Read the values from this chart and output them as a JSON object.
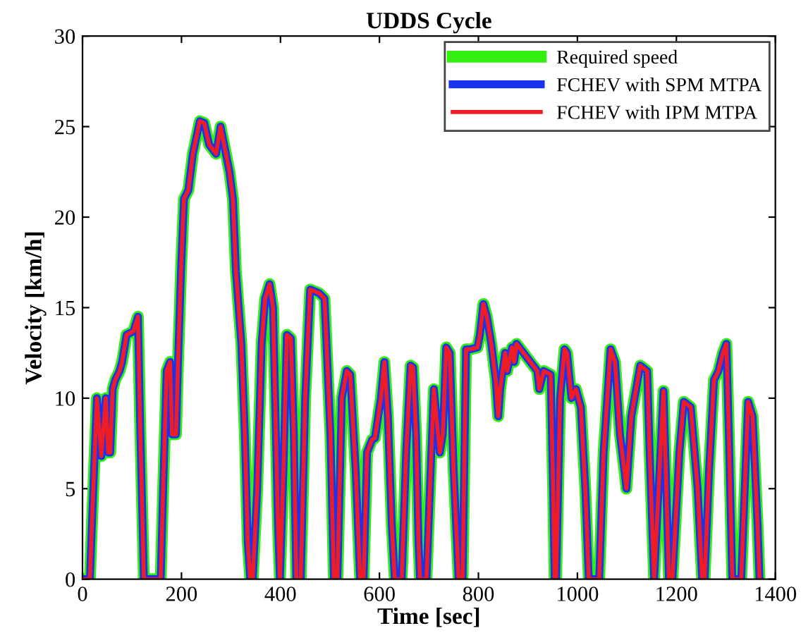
{
  "chart_data": {
    "type": "line",
    "title": "UDDS Cycle",
    "xlabel": "Time [sec]",
    "ylabel": "Velocity [km/h]",
    "x": [
      0,
      15,
      19,
      29,
      38,
      47,
      52,
      56,
      61,
      66,
      75,
      80,
      89,
      103,
      112,
      117,
      121,
      124,
      158,
      163,
      170,
      177,
      181,
      189,
      193,
      199,
      205,
      214,
      223,
      237,
      246,
      256,
      270,
      279,
      297,
      304,
      310,
      321,
      328,
      334,
      339,
      344,
      353,
      362,
      369,
      378,
      385,
      390,
      395,
      399,
      406,
      413,
      421,
      427,
      432,
      441,
      450,
      460,
      478,
      489,
      501,
      508,
      515,
      524,
      534,
      541,
      552,
      561,
      568,
      575,
      585,
      591,
      603,
      610,
      617,
      625,
      631,
      645,
      654,
      663,
      668,
      674,
      679,
      682,
      695,
      702,
      710,
      715,
      722,
      728,
      735,
      742,
      750,
      760,
      768,
      775,
      784,
      798,
      803,
      810,
      817,
      826,
      835,
      840,
      844,
      854,
      858,
      868,
      872,
      877,
      891,
      905,
      919,
      923,
      932,
      946,
      951,
      954,
      957,
      965,
      974,
      979,
      988,
      997,
      1007,
      1016,
      1023,
      1044,
      1053,
      1067,
      1076,
      1086,
      1095,
      1099,
      1109,
      1127,
      1141,
      1146,
      1155,
      1174,
      1185,
      1192,
      1206,
      1215,
      1229,
      1243,
      1252,
      1257,
      1266,
      1276,
      1285,
      1294,
      1301,
      1306,
      1313,
      1331,
      1345,
      1354,
      1364,
      1368
    ],
    "series": [
      {
        "name": "Required speed",
        "color": "#33ee11",
        "values": [
          0,
          0,
          3,
          10,
          6.8,
          10,
          7,
          7,
          10.5,
          11,
          11.5,
          12,
          13.5,
          13.7,
          14.5,
          8,
          3.5,
          0,
          0,
          5,
          11.5,
          12,
          8,
          8,
          12,
          17,
          21,
          21.5,
          23.5,
          25.3,
          25.2,
          24,
          23.5,
          25,
          22.5,
          21,
          17,
          13,
          8,
          2,
          0,
          0,
          5,
          13,
          15.5,
          16.3,
          15,
          9,
          3,
          0,
          6,
          13.5,
          13.3,
          8,
          0,
          0,
          10,
          16,
          15.8,
          15.5,
          8,
          0,
          0,
          10,
          11.5,
          11.3,
          6,
          0,
          0,
          7,
          7.7,
          7.8,
          10,
          12,
          9,
          3,
          0,
          0,
          7,
          11.8,
          11.7,
          8,
          2,
          0,
          0,
          5,
          10.5,
          9,
          7,
          8,
          12.8,
          12.5,
          6,
          0,
          0,
          12.7,
          12.7,
          12.8,
          13.5,
          15.2,
          14.5,
          13,
          11,
          9,
          10.5,
          12.5,
          11.5,
          12.8,
          12,
          13,
          12.5,
          12,
          11.5,
          10.5,
          11.5,
          11.3,
          5,
          0,
          0,
          10,
          12.7,
          12.5,
          10,
          10.5,
          9.5,
          5,
          0,
          0,
          7,
          12.7,
          12,
          8,
          6,
          5,
          9,
          11.8,
          11.5,
          7,
          0,
          10.4,
          0,
          0,
          7,
          9.8,
          9.5,
          5,
          0,
          0,
          6,
          11,
          11.5,
          12.5,
          13,
          8,
          0,
          0,
          9.8,
          9,
          3,
          0
        ]
      },
      {
        "name": "FCHEV with SPM MTPA",
        "color": "#1a33ee",
        "values": [
          0,
          0,
          3,
          10,
          6.8,
          10,
          7,
          7,
          10.5,
          11,
          11.5,
          12,
          13.5,
          13.7,
          14.5,
          8,
          3.5,
          0,
          0,
          5,
          11.5,
          12,
          8,
          8,
          12,
          17,
          21,
          21.5,
          23.5,
          25.3,
          25.2,
          24,
          23.5,
          25,
          22.5,
          21,
          17,
          13,
          8,
          2,
          0,
          0,
          5,
          13,
          15.5,
          16.3,
          15,
          9,
          3,
          0,
          6,
          13.5,
          13.3,
          8,
          0,
          0,
          10,
          16,
          15.8,
          15.5,
          8,
          0,
          0,
          10,
          11.5,
          11.3,
          6,
          0,
          0,
          7,
          7.7,
          7.8,
          10,
          12,
          9,
          3,
          0,
          0,
          7,
          11.8,
          11.7,
          8,
          2,
          0,
          0,
          5,
          10.5,
          9,
          7,
          8,
          12.8,
          12.5,
          6,
          0,
          0,
          12.7,
          12.7,
          12.8,
          13.5,
          15.2,
          14.5,
          13,
          11,
          9,
          10.5,
          12.5,
          11.5,
          12.8,
          12,
          13,
          12.5,
          12,
          11.5,
          10.5,
          11.5,
          11.3,
          5,
          0,
          0,
          10,
          12.7,
          12.5,
          10,
          10.5,
          9.5,
          5,
          0,
          0,
          7,
          12.7,
          12,
          8,
          6,
          5,
          9,
          11.8,
          11.5,
          7,
          0,
          10.4,
          0,
          0,
          7,
          9.8,
          9.5,
          5,
          0,
          0,
          6,
          11,
          11.5,
          12.5,
          13,
          8,
          0,
          0,
          9.8,
          9,
          3,
          0
        ]
      },
      {
        "name": "FCHEV with IPM MTPA",
        "color": "#ee1c24",
        "values": [
          0,
          0,
          3,
          10,
          6.8,
          10,
          7,
          7,
          10.5,
          11,
          11.5,
          12,
          13.5,
          13.7,
          14.5,
          8,
          3.5,
          0,
          0,
          5,
          11.5,
          12,
          8,
          8,
          12,
          17,
          21,
          21.5,
          23.5,
          25.3,
          25.2,
          24,
          23.5,
          25,
          22.5,
          21,
          17,
          13,
          8,
          2,
          0,
          0,
          5,
          13,
          15.5,
          16.3,
          15,
          9,
          3,
          0,
          6,
          13.5,
          13.3,
          8,
          0,
          0,
          10,
          16,
          15.8,
          15.5,
          8,
          0,
          0,
          10,
          11.5,
          11.3,
          6,
          0,
          0,
          7,
          7.7,
          7.8,
          10,
          12,
          9,
          3,
          0,
          0,
          7,
          11.8,
          11.7,
          8,
          2,
          0,
          0,
          5,
          10.5,
          9,
          7,
          8,
          12.8,
          12.5,
          6,
          0,
          0,
          12.7,
          12.7,
          12.8,
          13.5,
          15.2,
          14.5,
          13,
          11,
          9,
          10.5,
          12.5,
          11.5,
          12.8,
          12,
          13,
          12.5,
          12,
          11.5,
          10.5,
          11.5,
          11.3,
          5,
          0,
          0,
          10,
          12.7,
          12.5,
          10,
          10.5,
          9.5,
          5,
          0,
          0,
          7,
          12.7,
          12,
          8,
          6,
          5,
          9,
          11.8,
          11.5,
          7,
          0,
          10.4,
          0,
          0,
          7,
          9.8,
          9.5,
          5,
          0,
          0,
          6,
          11,
          11.5,
          12.5,
          13,
          8,
          0,
          0,
          9.8,
          9,
          3,
          0
        ]
      }
    ],
    "xlim": [
      0,
      1400
    ],
    "xticks": [
      0,
      200,
      400,
      600,
      800,
      1000,
      1200,
      1400
    ],
    "ylim": [
      0,
      30
    ],
    "yticks": [
      0,
      5,
      10,
      15,
      20,
      25,
      30
    ],
    "grid": false,
    "legend": "top right",
    "line_style": "solid",
    "marker": "none"
  }
}
